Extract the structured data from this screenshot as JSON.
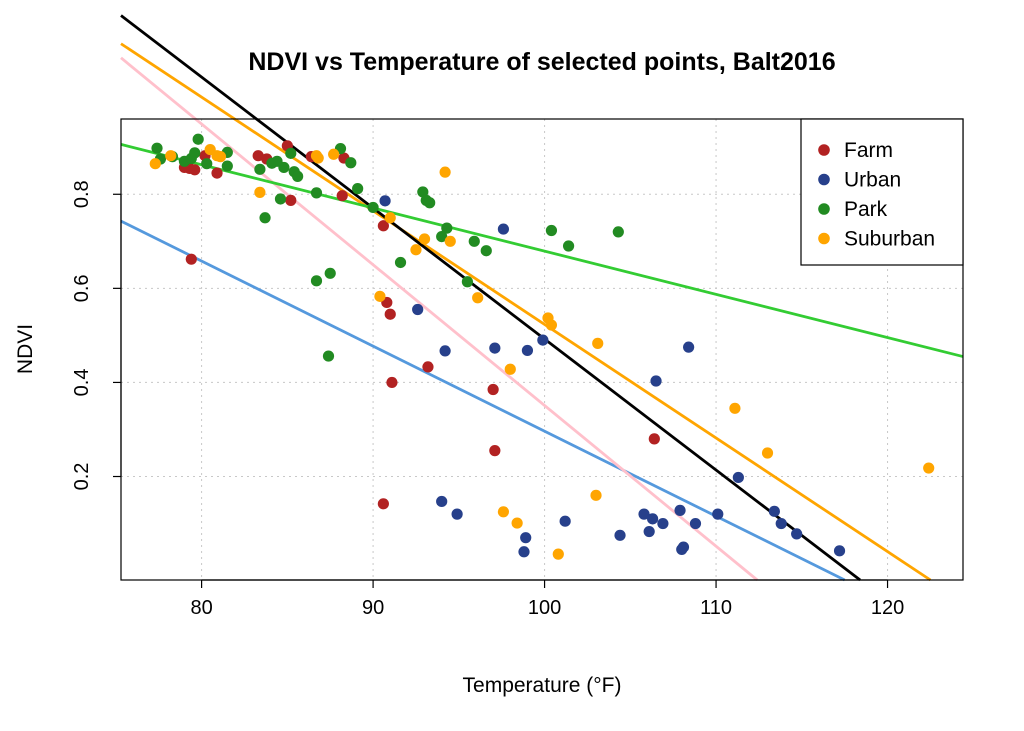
{
  "chart_data": {
    "type": "scatter",
    "title": "NDVI vs Temperature of selected points, Balt2016",
    "xlabel": "Temperature (°F)",
    "ylabel": "NDVI",
    "xlim": [
      75.3,
      124.4
    ],
    "ylim": [
      -0.02,
      0.96
    ],
    "xticks": [
      80,
      90,
      100,
      110,
      120
    ],
    "yticks": [
      0.2,
      0.4,
      0.6,
      0.8
    ],
    "grid": true,
    "legend_position": "top-right",
    "series": [
      {
        "name": "Farm",
        "color": "#b22222",
        "points": [
          [
            79.0,
            0.857
          ],
          [
            79.3,
            0.855
          ],
          [
            79.6,
            0.852
          ],
          [
            80.2,
            0.882
          ],
          [
            80.9,
            0.845
          ],
          [
            83.3,
            0.882
          ],
          [
            83.8,
            0.875
          ],
          [
            85.0,
            0.903
          ],
          [
            85.2,
            0.787
          ],
          [
            86.4,
            0.88
          ],
          [
            88.2,
            0.797
          ],
          [
            88.3,
            0.877
          ],
          [
            79.4,
            0.662
          ],
          [
            90.6,
            0.733
          ],
          [
            90.8,
            0.57
          ],
          [
            91.0,
            0.545
          ],
          [
            91.1,
            0.4
          ],
          [
            93.2,
            0.433
          ],
          [
            97.0,
            0.385
          ],
          [
            97.1,
            0.255
          ],
          [
            90.6,
            0.142
          ],
          [
            106.4,
            0.28
          ]
        ]
      },
      {
        "name": "Urban",
        "color": "#27408b",
        "points": [
          [
            90.7,
            0.786
          ],
          [
            97.6,
            0.726
          ],
          [
            92.6,
            0.555
          ],
          [
            94.2,
            0.467
          ],
          [
            97.1,
            0.473
          ],
          [
            99.0,
            0.468
          ],
          [
            99.9,
            0.49
          ],
          [
            106.5,
            0.403
          ],
          [
            108.4,
            0.475
          ],
          [
            111.3,
            0.198
          ],
          [
            94.0,
            0.147
          ],
          [
            94.9,
            0.12
          ],
          [
            98.9,
            0.07
          ],
          [
            98.8,
            0.04
          ],
          [
            101.2,
            0.105
          ],
          [
            104.4,
            0.075
          ],
          [
            105.8,
            0.12
          ],
          [
            106.3,
            0.11
          ],
          [
            106.1,
            0.083
          ],
          [
            106.9,
            0.1
          ],
          [
            107.9,
            0.128
          ],
          [
            108.1,
            0.05
          ],
          [
            108.0,
            0.045
          ],
          [
            108.8,
            0.1
          ],
          [
            110.1,
            0.12
          ],
          [
            113.4,
            0.126
          ],
          [
            113.8,
            0.1
          ],
          [
            114.7,
            0.078
          ],
          [
            117.2,
            0.042
          ]
        ]
      },
      {
        "name": "Park",
        "color": "#228b22",
        "points": [
          [
            77.4,
            0.898
          ],
          [
            77.6,
            0.875
          ],
          [
            78.3,
            0.88
          ],
          [
            79.0,
            0.87
          ],
          [
            79.4,
            0.876
          ],
          [
            79.8,
            0.917
          ],
          [
            79.6,
            0.888
          ],
          [
            80.3,
            0.865
          ],
          [
            81.5,
            0.889
          ],
          [
            81.5,
            0.86
          ],
          [
            83.4,
            0.853
          ],
          [
            84.1,
            0.866
          ],
          [
            84.4,
            0.87
          ],
          [
            84.8,
            0.857
          ],
          [
            85.2,
            0.887
          ],
          [
            85.4,
            0.848
          ],
          [
            85.6,
            0.838
          ],
          [
            84.6,
            0.79
          ],
          [
            86.7,
            0.803
          ],
          [
            83.7,
            0.75
          ],
          [
            88.1,
            0.897
          ],
          [
            88.7,
            0.867
          ],
          [
            89.1,
            0.812
          ],
          [
            90.0,
            0.772
          ],
          [
            92.9,
            0.805
          ],
          [
            93.1,
            0.787
          ],
          [
            93.3,
            0.782
          ],
          [
            94.3,
            0.728
          ],
          [
            94.0,
            0.71
          ],
          [
            95.9,
            0.7
          ],
          [
            96.6,
            0.68
          ],
          [
            100.4,
            0.723
          ],
          [
            101.4,
            0.69
          ],
          [
            104.3,
            0.72
          ],
          [
            91.6,
            0.655
          ],
          [
            87.5,
            0.632
          ],
          [
            86.7,
            0.616
          ],
          [
            95.5,
            0.614
          ],
          [
            87.4,
            0.456
          ]
        ]
      },
      {
        "name": "Suburban",
        "color": "#ffa500",
        "points": [
          [
            77.3,
            0.865
          ],
          [
            78.2,
            0.882
          ],
          [
            80.5,
            0.895
          ],
          [
            80.9,
            0.882
          ],
          [
            81.1,
            0.88
          ],
          [
            86.7,
            0.882
          ],
          [
            86.8,
            0.877
          ],
          [
            87.7,
            0.885
          ],
          [
            83.4,
            0.804
          ],
          [
            94.2,
            0.847
          ],
          [
            91.0,
            0.75
          ],
          [
            93.0,
            0.705
          ],
          [
            94.5,
            0.7
          ],
          [
            92.5,
            0.682
          ],
          [
            90.4,
            0.583
          ],
          [
            96.1,
            0.58
          ],
          [
            100.2,
            0.537
          ],
          [
            100.4,
            0.522
          ],
          [
            103.1,
            0.483
          ],
          [
            98.0,
            0.428
          ],
          [
            111.1,
            0.345
          ],
          [
            113.0,
            0.25
          ],
          [
            122.4,
            0.218
          ],
          [
            103.0,
            0.16
          ],
          [
            97.6,
            0.125
          ],
          [
            98.4,
            0.101
          ],
          [
            100.8,
            0.035
          ]
        ]
      }
    ],
    "fit_lines": [
      {
        "color": "#5599dd",
        "points": [
          [
            75.3,
            0.743
          ],
          [
            117.5,
            -0.02
          ]
        ]
      },
      {
        "color": "#ffc0cb",
        "points": [
          [
            75.3,
            1.09
          ],
          [
            112.4,
            -0.02
          ]
        ]
      },
      {
        "color": "#ffa500",
        "points": [
          [
            75.3,
            1.12
          ],
          [
            122.5,
            -0.02
          ]
        ]
      },
      {
        "color": "#000000",
        "points": [
          [
            75.3,
            1.18
          ],
          [
            118.4,
            -0.02
          ]
        ]
      },
      {
        "color": "#33cc33",
        "points": [
          [
            75.3,
            0.906
          ],
          [
            124.4,
            0.455
          ]
        ]
      }
    ]
  }
}
